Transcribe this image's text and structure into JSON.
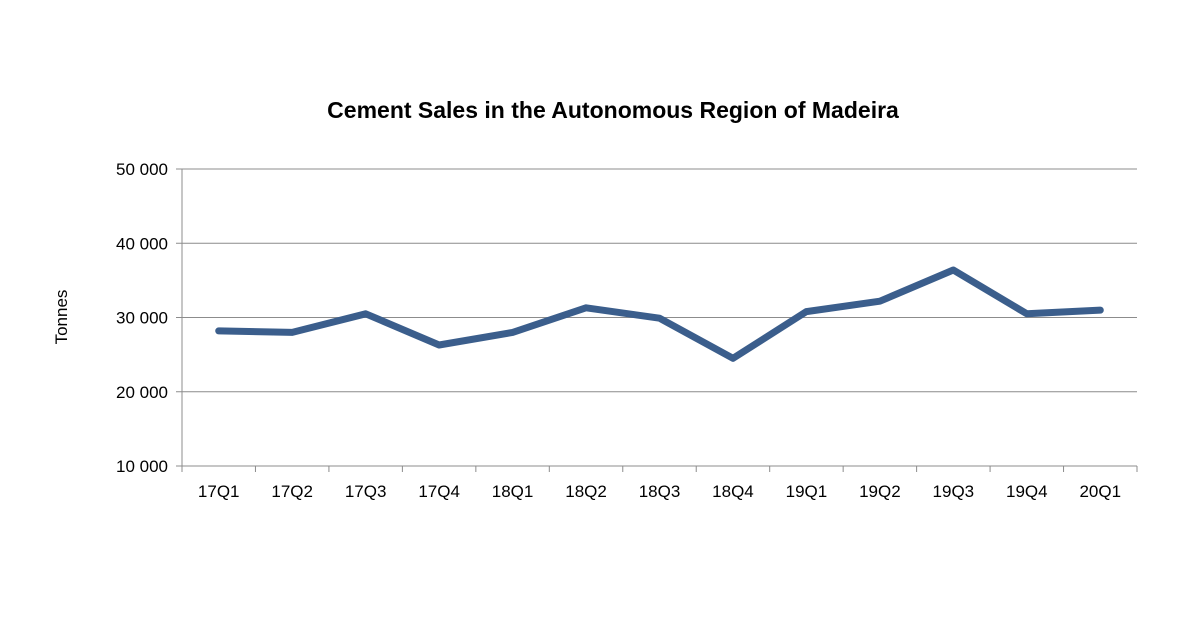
{
  "chart_data": {
    "type": "line",
    "title": "Cement Sales in the Autonomous Region of Madeira",
    "xlabel": "",
    "ylabel": "Tonnes",
    "categories": [
      "17Q1",
      "17Q2",
      "17Q3",
      "17Q4",
      "18Q1",
      "18Q2",
      "18Q3",
      "18Q4",
      "19Q1",
      "19Q2",
      "19Q3",
      "19Q4",
      "20Q1"
    ],
    "series": [
      {
        "values": [
          28200,
          28000,
          30500,
          26300,
          28000,
          31300,
          29900,
          24500,
          30800,
          32200,
          36400,
          30500,
          31000
        ]
      }
    ],
    "y_ticks": [
      "10 000",
      "20 000",
      "30 000",
      "40 000",
      "50 000"
    ],
    "ylim": [
      10000,
      50000
    ],
    "grid": true,
    "legend": "none",
    "line_color": "#3b5e8c"
  }
}
